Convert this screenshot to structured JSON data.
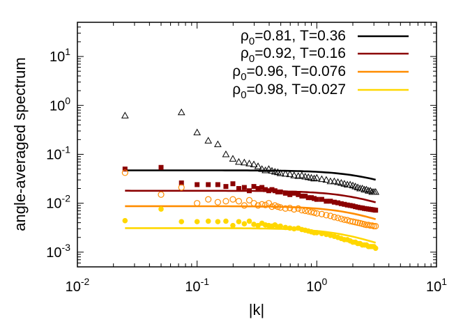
{
  "chart_data": {
    "type": "scatter",
    "xlabel": "|k|",
    "ylabel": "angle-averaged spectrum",
    "xscale": "log",
    "yscale": "log",
    "xlim": [
      0.01,
      10
    ],
    "ylim": [
      0.0005,
      50
    ],
    "xticks": [
      {
        "v": 0.01,
        "base": "10",
        "exp": "-2"
      },
      {
        "v": 0.1,
        "base": "10",
        "exp": "-1"
      },
      {
        "v": 1,
        "base": "10",
        "exp": "0"
      },
      {
        "v": 10,
        "base": "10",
        "exp": "1"
      }
    ],
    "yticks": [
      {
        "v": 0.001,
        "base": "10",
        "exp": "-3"
      },
      {
        "v": 0.01,
        "base": "10",
        "exp": "-2"
      },
      {
        "v": 0.1,
        "base": "10",
        "exp": "-1"
      },
      {
        "v": 1,
        "base": "10",
        "exp": "0"
      },
      {
        "v": 10,
        "base": "10",
        "exp": "1"
      }
    ],
    "legend_position": "top-right",
    "grid": false,
    "series": [
      {
        "legend": {
          "rho": "0.81",
          "T": "0.36"
        },
        "color": "#000000",
        "marker": "triangle-open",
        "fit_line": {
          "plateau": 0.047,
          "kc": 2.6,
          "x_range": [
            0.025,
            3.1
          ]
        },
        "points": [
          [
            0.025,
            0.62
          ],
          [
            0.074,
            0.72
          ],
          [
            0.1,
            0.28
          ],
          [
            0.124,
            0.19
          ],
          [
            0.149,
            0.16
          ],
          [
            0.174,
            0.1
          ],
          [
            0.199,
            0.081
          ],
          [
            0.223,
            0.07
          ],
          [
            0.248,
            0.068
          ],
          [
            0.273,
            0.065
          ],
          [
            0.298,
            0.062
          ],
          [
            0.323,
            0.057
          ],
          [
            0.348,
            0.05
          ],
          [
            0.372,
            0.047
          ],
          [
            0.397,
            0.05
          ],
          [
            0.422,
            0.046
          ],
          [
            0.447,
            0.044
          ],
          [
            0.472,
            0.043
          ],
          [
            0.497,
            0.041
          ],
          [
            0.547,
            0.04
          ],
          [
            0.596,
            0.039
          ],
          [
            0.646,
            0.037
          ],
          [
            0.7,
            0.036
          ],
          [
            0.75,
            0.037
          ],
          [
            0.8,
            0.035
          ],
          [
            0.85,
            0.034
          ],
          [
            0.9,
            0.033
          ],
          [
            0.95,
            0.032
          ],
          [
            1.0,
            0.033
          ],
          [
            1.1,
            0.031
          ],
          [
            1.2,
            0.03
          ],
          [
            1.3,
            0.028
          ],
          [
            1.4,
            0.028
          ],
          [
            1.5,
            0.027
          ],
          [
            1.6,
            0.026
          ],
          [
            1.7,
            0.025
          ],
          [
            1.8,
            0.024
          ],
          [
            1.9,
            0.024
          ],
          [
            2.0,
            0.023
          ],
          [
            2.1,
            0.022
          ],
          [
            2.2,
            0.021
          ],
          [
            2.3,
            0.02
          ],
          [
            2.4,
            0.02
          ],
          [
            2.5,
            0.019
          ],
          [
            2.6,
            0.019
          ],
          [
            2.7,
            0.018
          ],
          [
            2.8,
            0.018
          ],
          [
            2.9,
            0.017
          ],
          [
            3.0,
            0.017
          ],
          [
            3.1,
            0.017
          ]
        ]
      },
      {
        "legend": {
          "rho": "0.92",
          "T": "0.16"
        },
        "color": "#8b0000",
        "marker": "square-filled",
        "fit_line": {
          "plateau": 0.018,
          "kc": 2.2,
          "x_range": [
            0.025,
            3.1
          ]
        },
        "points": [
          [
            0.025,
            0.05
          ],
          [
            0.05,
            0.054
          ],
          [
            0.074,
            0.026
          ],
          [
            0.1,
            0.024
          ],
          [
            0.124,
            0.024
          ],
          [
            0.149,
            0.024
          ],
          [
            0.174,
            0.022
          ],
          [
            0.199,
            0.025
          ],
          [
            0.223,
            0.02
          ],
          [
            0.248,
            0.021
          ],
          [
            0.273,
            0.018
          ],
          [
            0.298,
            0.022
          ],
          [
            0.323,
            0.02
          ],
          [
            0.348,
            0.021
          ],
          [
            0.372,
            0.019
          ],
          [
            0.397,
            0.018
          ],
          [
            0.422,
            0.019
          ],
          [
            0.447,
            0.018
          ],
          [
            0.472,
            0.017
          ],
          [
            0.497,
            0.017
          ],
          [
            0.547,
            0.016
          ],
          [
            0.596,
            0.015
          ],
          [
            0.646,
            0.016
          ],
          [
            0.7,
            0.015
          ],
          [
            0.75,
            0.014
          ],
          [
            0.8,
            0.014
          ],
          [
            0.85,
            0.013
          ],
          [
            0.9,
            0.013
          ],
          [
            0.95,
            0.0125
          ],
          [
            1.0,
            0.012
          ],
          [
            1.1,
            0.012
          ],
          [
            1.2,
            0.011
          ],
          [
            1.3,
            0.011
          ],
          [
            1.4,
            0.0105
          ],
          [
            1.5,
            0.0102
          ],
          [
            1.6,
            0.0098
          ],
          [
            1.7,
            0.0095
          ],
          [
            1.8,
            0.0092
          ],
          [
            1.9,
            0.009
          ],
          [
            2.0,
            0.0088
          ],
          [
            2.1,
            0.0085
          ],
          [
            2.2,
            0.0083
          ],
          [
            2.3,
            0.0081
          ],
          [
            2.4,
            0.008
          ],
          [
            2.5,
            0.0078
          ],
          [
            2.6,
            0.0077
          ],
          [
            2.7,
            0.0076
          ],
          [
            2.8,
            0.0075
          ],
          [
            2.9,
            0.0074
          ],
          [
            3.0,
            0.0073
          ],
          [
            3.1,
            0.0072
          ]
        ]
      },
      {
        "legend": {
          "rho": "0.96",
          "T": "0.076"
        },
        "color": "#ff8c00",
        "marker": "circle-open",
        "fit_line": {
          "plateau": 0.0087,
          "kc": 2.0,
          "x_range": [
            0.025,
            3.1
          ]
        },
        "points": [
          [
            0.025,
            0.042
          ],
          [
            0.05,
            0.015
          ],
          [
            0.074,
            0.021
          ],
          [
            0.1,
            0.01
          ],
          [
            0.124,
            0.012
          ],
          [
            0.149,
            0.0105
          ],
          [
            0.174,
            0.011
          ],
          [
            0.199,
            0.012
          ],
          [
            0.223,
            0.011
          ],
          [
            0.248,
            0.009
          ],
          [
            0.273,
            0.0115
          ],
          [
            0.298,
            0.01
          ],
          [
            0.323,
            0.009
          ],
          [
            0.348,
            0.0095
          ],
          [
            0.372,
            0.0092
          ],
          [
            0.397,
            0.01
          ],
          [
            0.422,
            0.0085
          ],
          [
            0.447,
            0.009
          ],
          [
            0.472,
            0.0085
          ],
          [
            0.497,
            0.0082
          ],
          [
            0.547,
            0.0078
          ],
          [
            0.596,
            0.008
          ],
          [
            0.646,
            0.0075
          ],
          [
            0.7,
            0.0078
          ],
          [
            0.75,
            0.0072
          ],
          [
            0.8,
            0.007
          ],
          [
            0.85,
            0.0068
          ],
          [
            0.9,
            0.0066
          ],
          [
            0.95,
            0.0064
          ],
          [
            1.0,
            0.0062
          ],
          [
            1.1,
            0.006
          ],
          [
            1.2,
            0.0057
          ],
          [
            1.3,
            0.0055
          ],
          [
            1.4,
            0.0052
          ],
          [
            1.5,
            0.005
          ],
          [
            1.6,
            0.0048
          ],
          [
            1.7,
            0.0046
          ],
          [
            1.8,
            0.0045
          ],
          [
            1.9,
            0.0043
          ],
          [
            2.0,
            0.0042
          ],
          [
            2.1,
            0.0041
          ],
          [
            2.2,
            0.004
          ],
          [
            2.3,
            0.0039
          ],
          [
            2.4,
            0.0038
          ],
          [
            2.5,
            0.0037
          ],
          [
            2.6,
            0.0036
          ],
          [
            2.7,
            0.0036
          ],
          [
            2.8,
            0.0035
          ],
          [
            2.9,
            0.0035
          ],
          [
            3.0,
            0.0034
          ],
          [
            3.1,
            0.0034
          ]
        ]
      },
      {
        "legend": {
          "rho": "0.98",
          "T": "0.027"
        },
        "color": "#ffd700",
        "marker": "circle-filled",
        "fit_line": {
          "plateau": 0.0031,
          "kc": 1.8,
          "x_range": [
            0.025,
            3.1
          ]
        },
        "points": [
          [
            0.025,
            0.0044
          ],
          [
            0.05,
            0.0076
          ],
          [
            0.074,
            0.0042
          ],
          [
            0.1,
            0.0042
          ],
          [
            0.124,
            0.0043
          ],
          [
            0.149,
            0.0042
          ],
          [
            0.174,
            0.0043
          ],
          [
            0.199,
            0.0035
          ],
          [
            0.223,
            0.0042
          ],
          [
            0.248,
            0.0038
          ],
          [
            0.273,
            0.0043
          ],
          [
            0.298,
            0.0037
          ],
          [
            0.323,
            0.0035
          ],
          [
            0.348,
            0.0039
          ],
          [
            0.372,
            0.0036
          ],
          [
            0.397,
            0.0035
          ],
          [
            0.422,
            0.0034
          ],
          [
            0.447,
            0.0036
          ],
          [
            0.472,
            0.0033
          ],
          [
            0.497,
            0.0034
          ],
          [
            0.547,
            0.0032
          ],
          [
            0.596,
            0.0031
          ],
          [
            0.646,
            0.003
          ],
          [
            0.7,
            0.0031
          ],
          [
            0.75,
            0.0029
          ],
          [
            0.8,
            0.0028
          ],
          [
            0.85,
            0.0027
          ],
          [
            0.9,
            0.0026
          ],
          [
            0.95,
            0.0025
          ],
          [
            1.0,
            0.0025
          ],
          [
            1.1,
            0.0024
          ],
          [
            1.2,
            0.0023
          ],
          [
            1.3,
            0.0022
          ],
          [
            1.4,
            0.0021
          ],
          [
            1.5,
            0.002
          ],
          [
            1.6,
            0.0019
          ],
          [
            1.7,
            0.0018
          ],
          [
            1.8,
            0.0018
          ],
          [
            1.9,
            0.0017
          ],
          [
            2.0,
            0.0016
          ],
          [
            2.1,
            0.0016
          ],
          [
            2.2,
            0.0015
          ],
          [
            2.3,
            0.0015
          ],
          [
            2.4,
            0.0014
          ],
          [
            2.5,
            0.0014
          ],
          [
            2.6,
            0.0014
          ],
          [
            2.7,
            0.0013
          ],
          [
            2.8,
            0.0013
          ],
          [
            2.9,
            0.0013
          ],
          [
            3.0,
            0.0013
          ],
          [
            3.1,
            0.0012
          ]
        ]
      }
    ]
  }
}
